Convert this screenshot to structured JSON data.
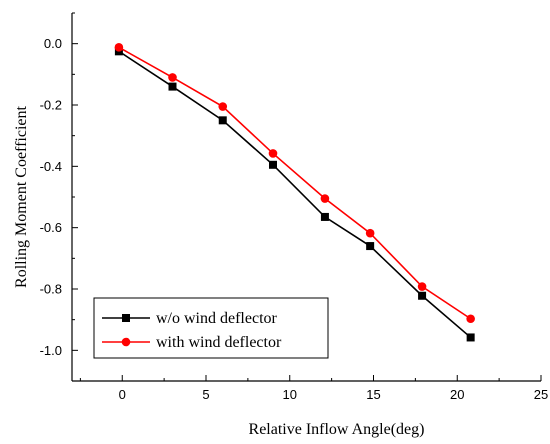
{
  "chart_data": {
    "type": "line",
    "title": "",
    "xlabel": "Relative Inflow Angle(deg)",
    "ylabel": "Rolling Moment Coefficient",
    "xlim": [
      -3,
      25
    ],
    "ylim": [
      -1.1,
      0.1
    ],
    "x_ticks": [
      0,
      5,
      10,
      15,
      20,
      25
    ],
    "y_ticks": [
      0.0,
      -0.2,
      -0.4,
      -0.6,
      -0.8,
      -1.0
    ],
    "x_tick_labels": [
      "0",
      "5",
      "10",
      "15",
      "20",
      "25"
    ],
    "y_tick_labels": [
      "0.0",
      "-0.2",
      "-0.4",
      "-0.6",
      "-0.8",
      "-1.0"
    ],
    "grid": false,
    "legend_position": "bottom-left",
    "series": [
      {
        "name": "w/o wind deflector",
        "color": "#000000",
        "marker": "square",
        "x": [
          -0.2,
          3.0,
          6.0,
          9.0,
          12.1,
          14.8,
          17.9,
          20.8
        ],
        "y": [
          -0.025,
          -0.14,
          -0.25,
          -0.395,
          -0.565,
          -0.66,
          -0.822,
          -0.958
        ]
      },
      {
        "name": "with wind deflector",
        "color": "#ff0000",
        "marker": "circle",
        "x": [
          -0.2,
          3.0,
          6.0,
          9.0,
          12.1,
          14.8,
          17.9,
          20.8
        ],
        "y": [
          -0.012,
          -0.11,
          -0.205,
          -0.358,
          -0.505,
          -0.618,
          -0.792,
          -0.897
        ]
      }
    ]
  }
}
